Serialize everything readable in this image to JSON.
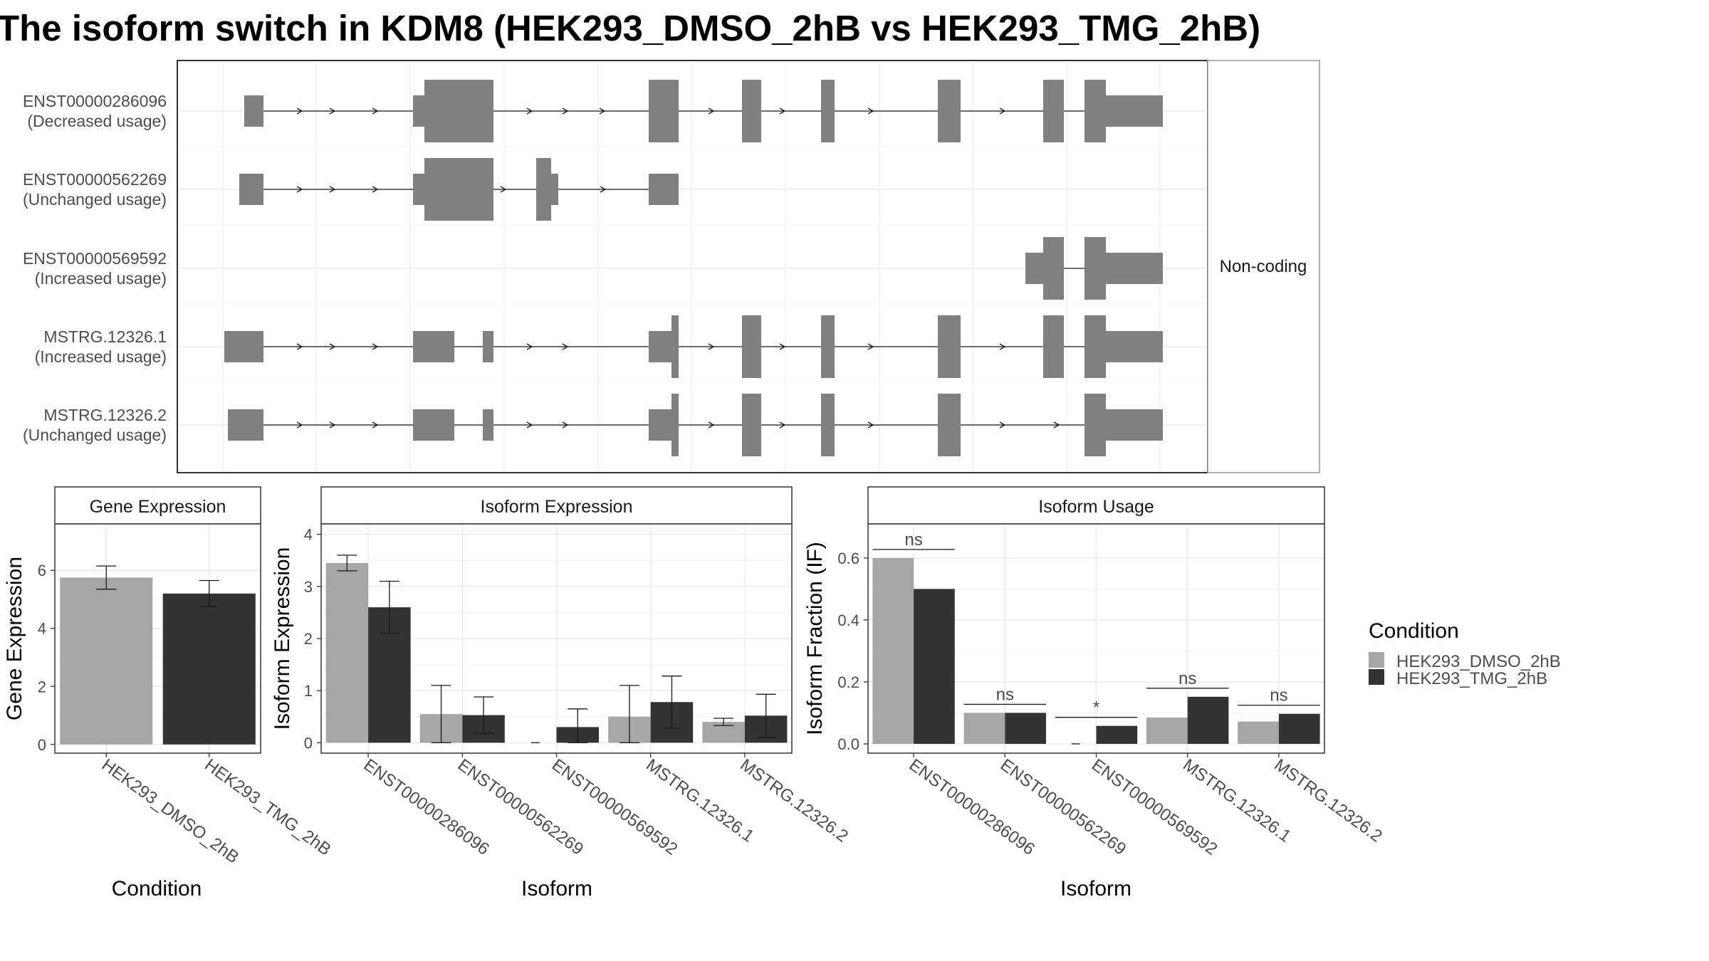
{
  "title": "The isoform switch in KDM8 (HEK293_DMSO_2hB vs HEK293_TMG_2hB)",
  "colors": {
    "dmso": "#a6a6a6",
    "tmg": "#333333",
    "exon": "#808080",
    "grid": "#ebebeb"
  },
  "chart_data": [
    {
      "type": "gene-structure",
      "panel_label": "Non-coding",
      "transcripts": [
        {
          "id": "ENST00000286096",
          "usage": "(Decreased usage)"
        },
        {
          "id": "ENST00000562269",
          "usage": "(Unchanged usage)"
        },
        {
          "id": "ENST00000569592",
          "usage": "(Increased usage)"
        },
        {
          "id": "MSTRG.12326.1",
          "usage": "(Increased usage)"
        },
        {
          "id": "MSTRG.12326.2",
          "usage": "(Unchanged usage)"
        }
      ]
    },
    {
      "type": "bar",
      "title": "Gene Expression",
      "xlabel": "Condition",
      "ylabel": "Gene Expression",
      "categories": [
        "HEK293_DMSO_2hB",
        "HEK293_TMG_2hB"
      ],
      "values": [
        5.75,
        5.2
      ],
      "errors": [
        [
          5.35,
          6.15
        ],
        [
          4.75,
          5.65
        ]
      ],
      "ylim": [
        -0.3,
        7.6
      ],
      "yticks": [
        0,
        2,
        4,
        6
      ],
      "ytick_labels": [
        "0",
        "2",
        "4",
        "6"
      ]
    },
    {
      "type": "bar",
      "title": "Isoform Expression",
      "xlabel": "Isoform",
      "ylabel": "Isoform Expression",
      "categories": [
        "ENST00000286096",
        "ENST00000562269",
        "ENST00000569592",
        "MSTRG.12326.1",
        "MSTRG.12326.2"
      ],
      "series": [
        {
          "name": "HEK293_DMSO_2hB",
          "values": [
            3.45,
            0.55,
            0.0,
            0.5,
            0.4
          ],
          "errors": [
            [
              3.3,
              3.6
            ],
            [
              0.0,
              1.1
            ],
            [
              0.0,
              0.0
            ],
            [
              0.0,
              1.1
            ],
            [
              0.33,
              0.47
            ]
          ]
        },
        {
          "name": "HEK293_TMG_2hB",
          "values": [
            2.6,
            0.53,
            0.3,
            0.78,
            0.52
          ],
          "errors": [
            [
              2.1,
              3.1
            ],
            [
              0.18,
              0.88
            ],
            [
              0.0,
              0.65
            ],
            [
              0.28,
              1.28
            ],
            [
              0.1,
              0.93
            ]
          ]
        }
      ],
      "ylim": [
        -0.2,
        4.2
      ],
      "yticks": [
        0,
        1,
        2,
        3,
        4
      ],
      "ytick_labels": [
        "0",
        "1",
        "2",
        "3",
        "4"
      ]
    },
    {
      "type": "bar",
      "title": "Isoform Usage",
      "xlabel": "Isoform",
      "ylabel": "Isoform Fraction (IF)",
      "categories": [
        "ENST00000286096",
        "ENST00000562269",
        "ENST00000569592",
        "MSTRG.12326.1",
        "MSTRG.12326.2"
      ],
      "series": [
        {
          "name": "HEK293_DMSO_2hB",
          "values": [
            0.6,
            0.1,
            0.0,
            0.085,
            0.072
          ]
        },
        {
          "name": "HEK293_TMG_2hB",
          "values": [
            0.5,
            0.1,
            0.058,
            0.152,
            0.097
          ]
        }
      ],
      "significance": [
        "ns",
        "ns",
        "*",
        "ns",
        "ns"
      ],
      "ylim": [
        -0.03,
        0.71
      ],
      "yticks": [
        0,
        0.2,
        0.4,
        0.6
      ],
      "ytick_labels": [
        "0.0",
        "0.2",
        "0.4",
        "0.6"
      ]
    }
  ],
  "legend": {
    "title": "Condition",
    "items": [
      {
        "label": "HEK293_DMSO_2hB",
        "color": "#a6a6a6"
      },
      {
        "label": "HEK293_TMG_2hB",
        "color": "#333333"
      }
    ]
  }
}
